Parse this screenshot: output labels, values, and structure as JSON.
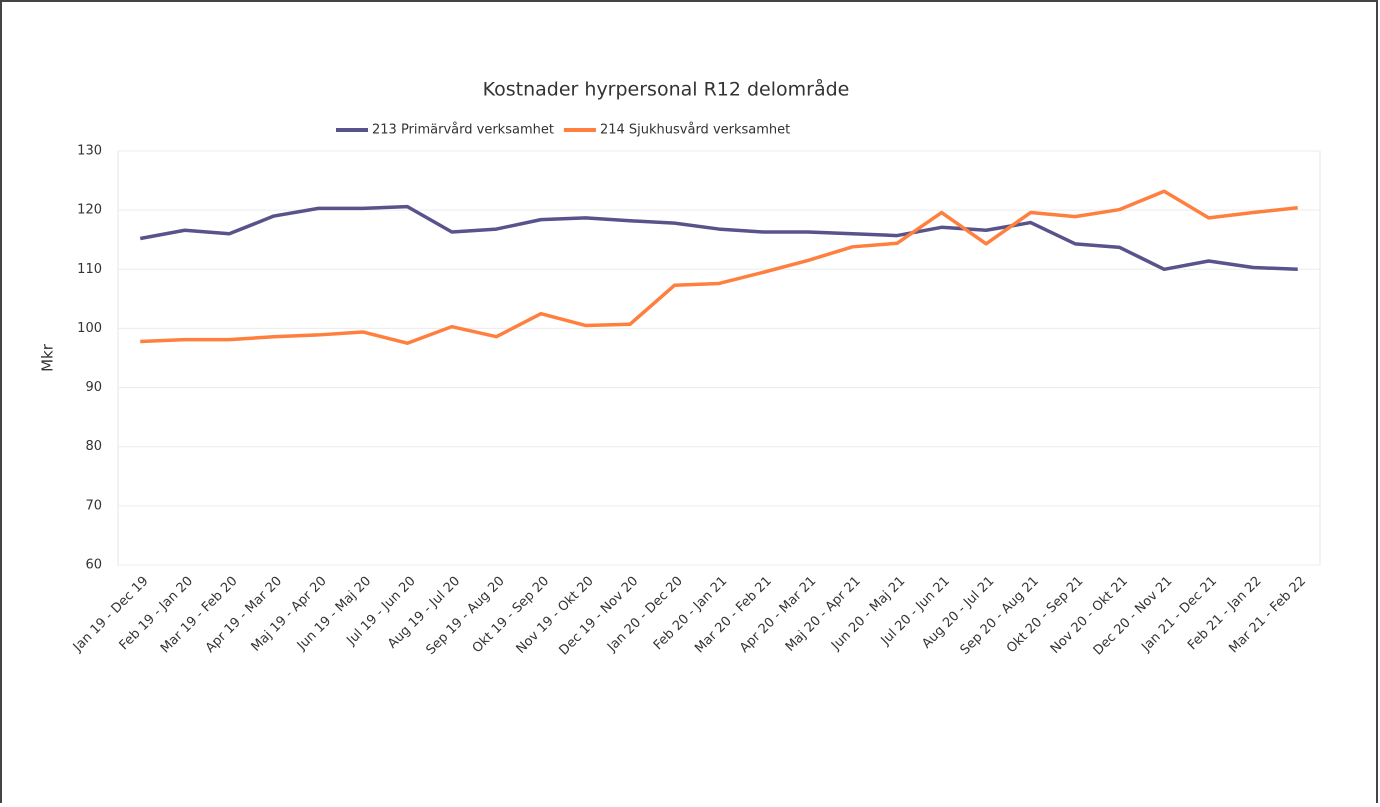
{
  "chart_data": {
    "type": "line",
    "title": "Kostnader hyrpersonal R12 delområde",
    "ylabel": "Mkr",
    "categories": [
      "Jan 19 - Dec 19",
      "Feb 19 - Jan 20",
      "Mar 19 - Feb 20",
      "Apr 19 - Mar 20",
      "Maj 19 - Apr 20",
      "Jun 19 - Maj 20",
      "Jul 19 - Jun 20",
      "Aug 19 - Jul 20",
      "Sep 19 - Aug 20",
      "Okt 19 - Sep 20",
      "Nov 19 - Okt 20",
      "Dec 19 - Nov 20",
      "Jan 20 - Dec 20",
      "Feb 20 - Jan 21",
      "Mar 20 - Feb 21",
      "Apr 20 - Mar 21",
      "Maj 20 - Apr 21",
      "Jun 20 - Maj 21",
      "Jul 20 - Jun 21",
      "Aug 20 - Jul 21",
      "Sep 20 - Aug 21",
      "Okt 20 - Sep 21",
      "Nov 20 - Okt 21",
      "Dec 20 - Nov 21",
      "Jan 21 - Dec 21",
      "Feb 21 - Jan 22",
      "Mar 21 - Feb 22"
    ],
    "series": [
      {
        "name": "213 Primärvård verksamhet",
        "color": "#58538a",
        "values": [
          115.2,
          116.6,
          116.0,
          119.0,
          120.3,
          120.3,
          120.6,
          116.3,
          116.8,
          118.4,
          118.7,
          118.2,
          117.8,
          116.8,
          116.3,
          116.3,
          116.0,
          115.7,
          117.1,
          116.6,
          117.9,
          114.3,
          113.7,
          110.0,
          111.4,
          110.3,
          110.0
        ]
      },
      {
        "name": "214 Sjukhusvård verksamhet",
        "color": "#ff7f3f",
        "values": [
          97.8,
          98.1,
          98.1,
          98.6,
          98.9,
          99.4,
          97.5,
          100.3,
          98.6,
          102.5,
          100.5,
          100.7,
          107.3,
          107.6,
          109.5,
          111.5,
          113.8,
          114.4,
          119.6,
          114.3,
          119.6,
          118.9,
          120.1,
          123.2,
          118.7,
          119.6,
          120.4
        ]
      }
    ],
    "ylim": [
      60,
      130
    ],
    "yticks": [
      60,
      70,
      80,
      90,
      100,
      110,
      120,
      130
    ],
    "grid": true
  }
}
